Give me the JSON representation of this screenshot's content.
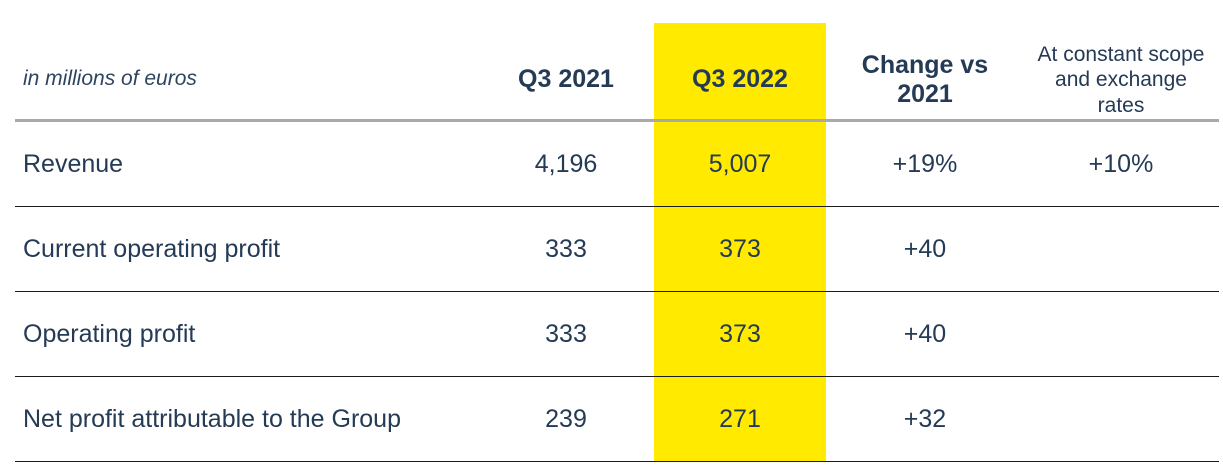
{
  "table": {
    "unit_label": "in millions of euros",
    "headers": {
      "q3_2021": "Q3 2021",
      "q3_2022": "Q3 2022",
      "change": "Change vs 2021",
      "constant": "At constant scope and exchange rates"
    },
    "rows": [
      {
        "label": "Revenue",
        "q3_2021": "4,196",
        "q3_2022": "5,007",
        "change": "+19%",
        "constant": "+10%"
      },
      {
        "label": "Current operating profit",
        "q3_2021": "333",
        "q3_2022": "373",
        "change": "+40",
        "constant": ""
      },
      {
        "label": "Operating profit",
        "q3_2021": "333",
        "q3_2022": "373",
        "change": "+40",
        "constant": ""
      },
      {
        "label": "Net profit attributable to the Group",
        "q3_2021": "239",
        "q3_2022": "271",
        "change": "+32",
        "constant": ""
      }
    ]
  },
  "colors": {
    "highlight": "#ffea00",
    "text": "#243a55",
    "header_rule": "#a9a9a9",
    "row_rule": "#1b1b1b"
  }
}
